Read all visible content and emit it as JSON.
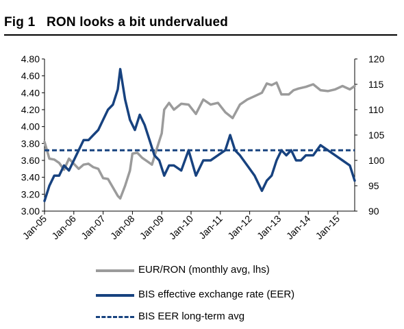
{
  "figure": {
    "label": "Fig 1",
    "title": "RON looks a bit undervalued"
  },
  "chart_data": {
    "type": "line",
    "x_ticks": [
      "Jan-05",
      "Jan-06",
      "Jan-07",
      "Jan-08",
      "Jan-09",
      "Jan-10",
      "Jan-11",
      "Jan-12",
      "Jan-13",
      "Jan-14",
      "Jan-15"
    ],
    "x_range": [
      "Jan-05",
      "Aug-15"
    ],
    "y_left": {
      "min": 3.0,
      "max": 4.8,
      "ticks": [
        "3.00",
        "3.20",
        "3.40",
        "3.60",
        "3.80",
        "4.00",
        "4.20",
        "4.40",
        "4.60",
        "4.80"
      ]
    },
    "y_right": {
      "min": 90,
      "max": 120,
      "ticks": [
        "90",
        "95",
        "100",
        "105",
        "110",
        "115",
        "120"
      ]
    },
    "grid": false,
    "legend_position": "bottom",
    "series": [
      {
        "name": "EUR/RON (monthly avg, lhs)",
        "axis": "left",
        "color": "#9b9b9b",
        "style": "solid",
        "x": [
          "2005-01",
          "2005-03",
          "2005-05",
          "2005-07",
          "2005-09",
          "2005-11",
          "2006-01",
          "2006-03",
          "2006-05",
          "2006-07",
          "2006-09",
          "2006-11",
          "2007-01",
          "2007-03",
          "2007-05",
          "2007-07",
          "2007-08",
          "2007-10",
          "2007-12",
          "2008-01",
          "2008-03",
          "2008-05",
          "2008-07",
          "2008-09",
          "2008-11",
          "2009-01",
          "2009-02",
          "2009-04",
          "2009-06",
          "2009-09",
          "2009-12",
          "2010-03",
          "2010-06",
          "2010-09",
          "2010-12",
          "2011-03",
          "2011-06",
          "2011-09",
          "2011-12",
          "2012-03",
          "2012-06",
          "2012-08",
          "2012-10",
          "2012-12",
          "2013-02",
          "2013-05",
          "2013-07",
          "2013-09",
          "2013-12",
          "2014-03",
          "2014-06",
          "2014-09",
          "2014-12",
          "2015-03",
          "2015-06",
          "2015-08"
        ],
        "values": [
          3.82,
          3.62,
          3.61,
          3.57,
          3.49,
          3.62,
          3.56,
          3.5,
          3.55,
          3.56,
          3.52,
          3.5,
          3.39,
          3.38,
          3.28,
          3.18,
          3.15,
          3.3,
          3.48,
          3.68,
          3.69,
          3.63,
          3.59,
          3.55,
          3.74,
          3.92,
          4.2,
          4.28,
          4.2,
          4.27,
          4.26,
          4.15,
          4.32,
          4.26,
          4.28,
          4.17,
          4.1,
          4.26,
          4.32,
          4.36,
          4.4,
          4.51,
          4.49,
          4.52,
          4.38,
          4.38,
          4.43,
          4.45,
          4.47,
          4.5,
          4.43,
          4.42,
          4.44,
          4.48,
          4.44,
          4.48
        ]
      },
      {
        "name": "BIS effective exchange rate (EER)",
        "axis": "right",
        "color": "#17427f",
        "style": "solid",
        "x": [
          "2005-01",
          "2005-03",
          "2005-05",
          "2005-07",
          "2005-09",
          "2005-11",
          "2006-01",
          "2006-03",
          "2006-05",
          "2006-07",
          "2006-09",
          "2006-11",
          "2007-01",
          "2007-03",
          "2007-05",
          "2007-07",
          "2007-08",
          "2007-10",
          "2007-12",
          "2008-02",
          "2008-04",
          "2008-06",
          "2008-08",
          "2008-10",
          "2008-12",
          "2009-02",
          "2009-04",
          "2009-06",
          "2009-09",
          "2009-12",
          "2010-03",
          "2010-06",
          "2010-09",
          "2010-12",
          "2011-03",
          "2011-05",
          "2011-07",
          "2011-09",
          "2011-12",
          "2012-03",
          "2012-06",
          "2012-08",
          "2012-10",
          "2012-12",
          "2013-02",
          "2013-04",
          "2013-06",
          "2013-08",
          "2013-10",
          "2013-12",
          "2014-03",
          "2014-06",
          "2014-09",
          "2014-12",
          "2015-03",
          "2015-06",
          "2015-08"
        ],
        "values": [
          92,
          95,
          97,
          97,
          99,
          98,
          100,
          102,
          104,
          104,
          105,
          106,
          108,
          110,
          111,
          114,
          118,
          112,
          108,
          106,
          109,
          107,
          104,
          101,
          100,
          97,
          99,
          99,
          98,
          102,
          97,
          100,
          100,
          101,
          102,
          105,
          102,
          101,
          99,
          97,
          94,
          96,
          97,
          100,
          102,
          101,
          102,
          100,
          100,
          101,
          101,
          103,
          102,
          101,
          100,
          99,
          96
        ]
      },
      {
        "name": "BIS EER long-term avg",
        "axis": "right",
        "color": "#17427f",
        "style": "dashed",
        "x": [
          "2005-01",
          "2015-08"
        ],
        "values": [
          102,
          102
        ]
      }
    ]
  }
}
